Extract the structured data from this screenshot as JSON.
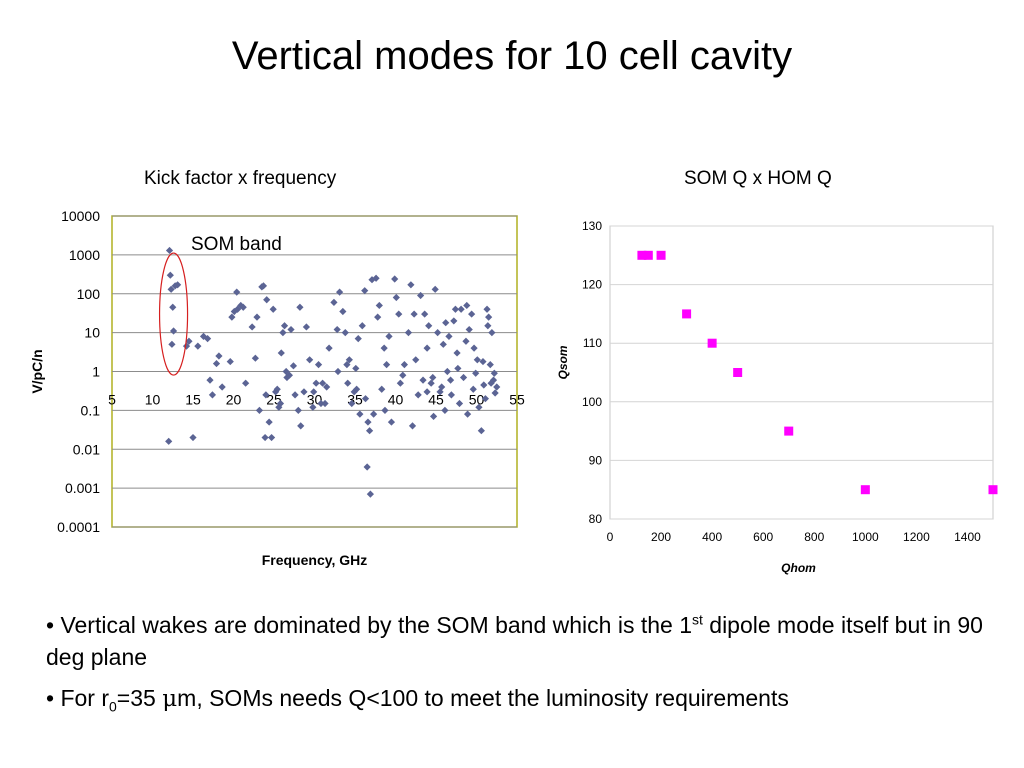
{
  "slide": {
    "title": "Vertical modes for 10 cell cavity",
    "left_subtitle": "Kick factor x frequency",
    "right_subtitle": "SOM Q x HOM Q",
    "bullets": [
      {
        "prefix": "• Vertical wakes are dominated by the SOM band which is the 1",
        "sup": "st",
        "suffix": " dipole mode itself but in 90 deg plane"
      },
      {
        "prefix": "• For r",
        "sub": "0",
        "mid": "=35 ",
        "greek": "μ",
        "suffix": "m, SOMs needs Q<100 to meet the luminosity requirements"
      }
    ]
  },
  "chart_data": [
    {
      "type": "scatter",
      "title": "Kick factor x frequency",
      "xlabel": "Frequency, GHz",
      "ylabel": "V/pC/n",
      "xlim": [
        5,
        55
      ],
      "ylim": [
        0.0001,
        10000
      ],
      "yscale": "log",
      "xticks": [
        "5",
        "10",
        "15",
        "20",
        "25",
        "30",
        "35",
        "40",
        "45",
        "50",
        "55"
      ],
      "yticks": [
        "10000",
        "1000",
        "100",
        "10",
        "1",
        "0.1",
        "0.01",
        "0.001",
        "0.0001"
      ],
      "grid": true,
      "annotation": "SOM band",
      "marker_color": "#5b6494",
      "points": [
        [
          12.1,
          1300
        ],
        [
          12.2,
          300
        ],
        [
          12.3,
          130
        ],
        [
          12.5,
          45
        ],
        [
          12.6,
          11
        ],
        [
          12.4,
          5
        ],
        [
          12.8,
          160
        ],
        [
          13.1,
          170
        ],
        [
          12.0,
          0.016
        ],
        [
          14.2,
          4.5
        ],
        [
          14.5,
          6
        ],
        [
          15.0,
          0.02
        ],
        [
          15.6,
          4.5
        ],
        [
          16.3,
          8
        ],
        [
          16.8,
          7
        ],
        [
          17.1,
          0.6
        ],
        [
          17.4,
          0.25
        ],
        [
          18.2,
          2.5
        ],
        [
          17.9,
          1.6
        ],
        [
          19.8,
          25
        ],
        [
          20.1,
          35
        ],
        [
          20.4,
          110
        ],
        [
          20.9,
          50
        ],
        [
          21.5,
          0.5
        ],
        [
          22.3,
          14
        ],
        [
          22.9,
          25
        ],
        [
          23.2,
          0.1
        ],
        [
          23.5,
          150
        ],
        [
          23.7,
          160
        ],
        [
          24.0,
          0.25
        ],
        [
          24.4,
          0.05
        ],
        [
          24.7,
          0.02
        ],
        [
          23.9,
          0.02
        ],
        [
          24.1,
          70
        ],
        [
          24.9,
          40
        ],
        [
          25.2,
          0.3
        ],
        [
          25.6,
          0.12
        ],
        [
          25.9,
          3
        ],
        [
          26.1,
          10
        ],
        [
          26.3,
          15
        ],
        [
          26.6,
          0.7
        ],
        [
          26.9,
          0.8
        ],
        [
          27.1,
          12
        ],
        [
          27.6,
          0.25
        ],
        [
          28.0,
          0.1
        ],
        [
          28.3,
          0.04
        ],
        [
          28.2,
          45
        ],
        [
          28.7,
          0.3
        ],
        [
          29.0,
          14
        ],
        [
          29.4,
          2
        ],
        [
          29.8,
          0.12
        ],
        [
          30.2,
          0.5
        ],
        [
          30.5,
          1.5
        ],
        [
          31.0,
          0.5
        ],
        [
          31.3,
          0.15
        ],
        [
          31.8,
          4
        ],
        [
          32.4,
          60
        ],
        [
          32.8,
          12
        ],
        [
          33.1,
          110
        ],
        [
          33.5,
          35
        ],
        [
          34.0,
          1.5
        ],
        [
          34.3,
          2
        ],
        [
          34.6,
          0.15
        ],
        [
          34.9,
          0.3
        ],
        [
          35.1,
          1.2
        ],
        [
          35.4,
          7
        ],
        [
          35.6,
          0.08
        ],
        [
          35.9,
          15
        ],
        [
          36.2,
          120
        ],
        [
          36.5,
          0.0035
        ],
        [
          36.8,
          0.03
        ],
        [
          36.9,
          0.0007
        ],
        [
          37.1,
          230
        ],
        [
          37.3,
          0.08
        ],
        [
          37.6,
          250
        ],
        [
          37.8,
          25
        ],
        [
          38.0,
          50
        ],
        [
          38.3,
          0.35
        ],
        [
          38.6,
          4
        ],
        [
          38.9,
          1.5
        ],
        [
          39.2,
          8
        ],
        [
          39.5,
          0.05
        ],
        [
          39.9,
          240
        ],
        [
          40.1,
          80
        ],
        [
          40.6,
          0.5
        ],
        [
          40.9,
          0.8
        ],
        [
          41.1,
          1.5
        ],
        [
          41.6,
          10
        ],
        [
          41.9,
          170
        ],
        [
          42.1,
          0.04
        ],
        [
          42.5,
          2
        ],
        [
          42.8,
          0.25
        ],
        [
          43.1,
          90
        ],
        [
          43.4,
          0.6
        ],
        [
          43.6,
          30
        ],
        [
          43.9,
          4
        ],
        [
          44.1,
          15
        ],
        [
          44.4,
          0.5
        ],
        [
          44.7,
          0.07
        ],
        [
          44.9,
          130
        ],
        [
          45.2,
          10
        ],
        [
          45.5,
          0.3
        ],
        [
          45.9,
          5
        ],
        [
          46.1,
          0.1
        ],
        [
          46.4,
          1
        ],
        [
          46.6,
          8
        ],
        [
          46.9,
          0.25
        ],
        [
          47.2,
          20
        ],
        [
          47.6,
          3
        ],
        [
          47.9,
          0.15
        ],
        [
          48.1,
          40
        ],
        [
          48.4,
          0.7
        ],
        [
          48.7,
          6
        ],
        [
          48.9,
          0.08
        ],
        [
          49.1,
          12
        ],
        [
          49.4,
          30
        ],
        [
          49.6,
          0.35
        ],
        [
          49.9,
          0.9
        ],
        [
          50.1,
          2
        ],
        [
          50.3,
          0.12
        ],
        [
          50.6,
          0.03
        ],
        [
          50.9,
          0.45
        ],
        [
          51.1,
          0.2
        ],
        [
          51.3,
          40
        ],
        [
          51.5,
          25
        ],
        [
          51.7,
          1.5
        ],
        [
          51.9,
          10
        ],
        [
          52.1,
          0.6
        ],
        [
          52.3,
          0.28
        ],
        [
          52.5,
          0.4
        ],
        [
          52.2,
          0.9
        ],
        [
          51.8,
          0.5
        ],
        [
          47.4,
          40
        ],
        [
          46.2,
          18
        ],
        [
          47.7,
          1.2
        ],
        [
          45.7,
          0.4
        ],
        [
          44.6,
          0.7
        ],
        [
          43.9,
          0.3
        ],
        [
          42.3,
          30
        ],
        [
          40.4,
          30
        ],
        [
          38.7,
          0.1
        ],
        [
          36.6,
          0.05
        ],
        [
          36.3,
          0.2
        ],
        [
          35.2,
          0.35
        ],
        [
          34.1,
          0.5
        ],
        [
          33.8,
          10
        ],
        [
          32.9,
          1
        ],
        [
          31.5,
          0.4
        ],
        [
          30.8,
          0.15
        ],
        [
          29.9,
          0.3
        ],
        [
          27.4,
          1.4
        ],
        [
          26.5,
          1
        ],
        [
          25.8,
          0.15
        ],
        [
          25.4,
          0.35
        ],
        [
          22.7,
          2.2
        ],
        [
          21.2,
          45
        ],
        [
          20.5,
          40
        ],
        [
          19.6,
          1.8
        ],
        [
          18.6,
          0.4
        ],
        [
          48.8,
          50
        ],
        [
          49.7,
          4
        ],
        [
          50.8,
          1.8
        ],
        [
          51.4,
          15
        ],
        [
          46.8,
          0.6
        ]
      ]
    },
    {
      "type": "scatter",
      "title": "SOM Q x HOM Q",
      "xlabel": "Qhom",
      "ylabel": "Qsom",
      "xlim": [
        0,
        1500
      ],
      "ylim": [
        80,
        130
      ],
      "xticks": [
        "0",
        "200",
        "400",
        "600",
        "800",
        "1000",
        "1200",
        "1400"
      ],
      "yticks": [
        "130",
        "120",
        "110",
        "100",
        "90",
        "80"
      ],
      "grid": true,
      "marker_color": "#ff00ff",
      "points": [
        [
          125,
          125
        ],
        [
          150,
          125
        ],
        [
          200,
          125
        ],
        [
          300,
          115
        ],
        [
          400,
          110
        ],
        [
          500,
          105
        ],
        [
          700,
          95
        ],
        [
          1000,
          85
        ],
        [
          1500,
          85
        ]
      ]
    }
  ]
}
